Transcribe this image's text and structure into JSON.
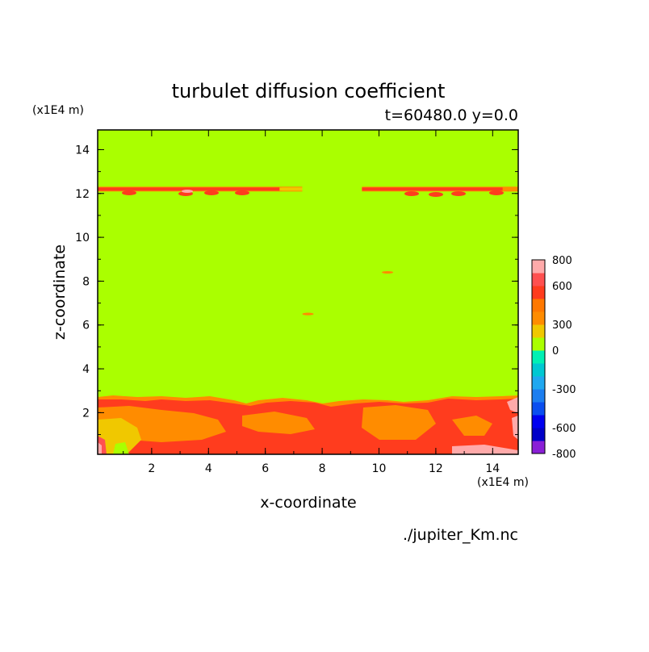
{
  "chart_data": {
    "type": "heatmap",
    "title": "turbulet diffusion coefficient",
    "subtitle": "t=60480.0 y=0.0",
    "xlabel": "x-coordinate",
    "ylabel": "z-coordinate",
    "x_unit": "(x1E4 m)",
    "y_unit": "(x1E4 m)",
    "source": "./jupiter_Km.nc",
    "xlim": [
      0.1,
      14.9
    ],
    "ylim": [
      0.1,
      14.9
    ],
    "x_ticks": [
      2,
      4,
      6,
      8,
      10,
      12,
      14
    ],
    "y_ticks": [
      2,
      4,
      6,
      8,
      10,
      12,
      14
    ],
    "colorbar": {
      "levels": [
        -800,
        -700,
        -600,
        -500,
        -400,
        -300,
        -200,
        -100,
        0,
        200,
        300,
        400,
        500,
        600,
        700,
        800
      ],
      "colors": [
        "#8a1fd6",
        "#0000c8",
        "#0000f0",
        "#0a4ef0",
        "#1c7ef0",
        "#20a8f0",
        "#00c8d2",
        "#00f0b4",
        "#aaff00",
        "#f0c800",
        "#ff8c00",
        "#ff7800",
        "#ff3c1e",
        "#ff5050",
        "#ffaaaa"
      ],
      "tick_labels": [
        "-800",
        "-600",
        "-300",
        "0",
        "300",
        "600",
        "800"
      ],
      "tick_values": [
        -800,
        -600,
        -300,
        0,
        300,
        600,
        800
      ]
    },
    "field": {
      "background_value": 0,
      "bands": [
        {
          "name": "upper-band",
          "z_center": 12.2,
          "x_ranges": [
            [
              0.1,
              7.3
            ],
            [
              9.4,
              14.9
            ]
          ],
          "max_value": 700
        },
        {
          "name": "lower-layer",
          "z_top": 2.4,
          "z_bottom": 0.1,
          "values": [
            300,
            500,
            600
          ]
        },
        {
          "name": "small-spot-1",
          "x": 7.5,
          "z": 6.5,
          "value": 300
        },
        {
          "name": "small-spot-2",
          "x": 10.3,
          "z": 8.4,
          "value": 300
        }
      ]
    }
  }
}
